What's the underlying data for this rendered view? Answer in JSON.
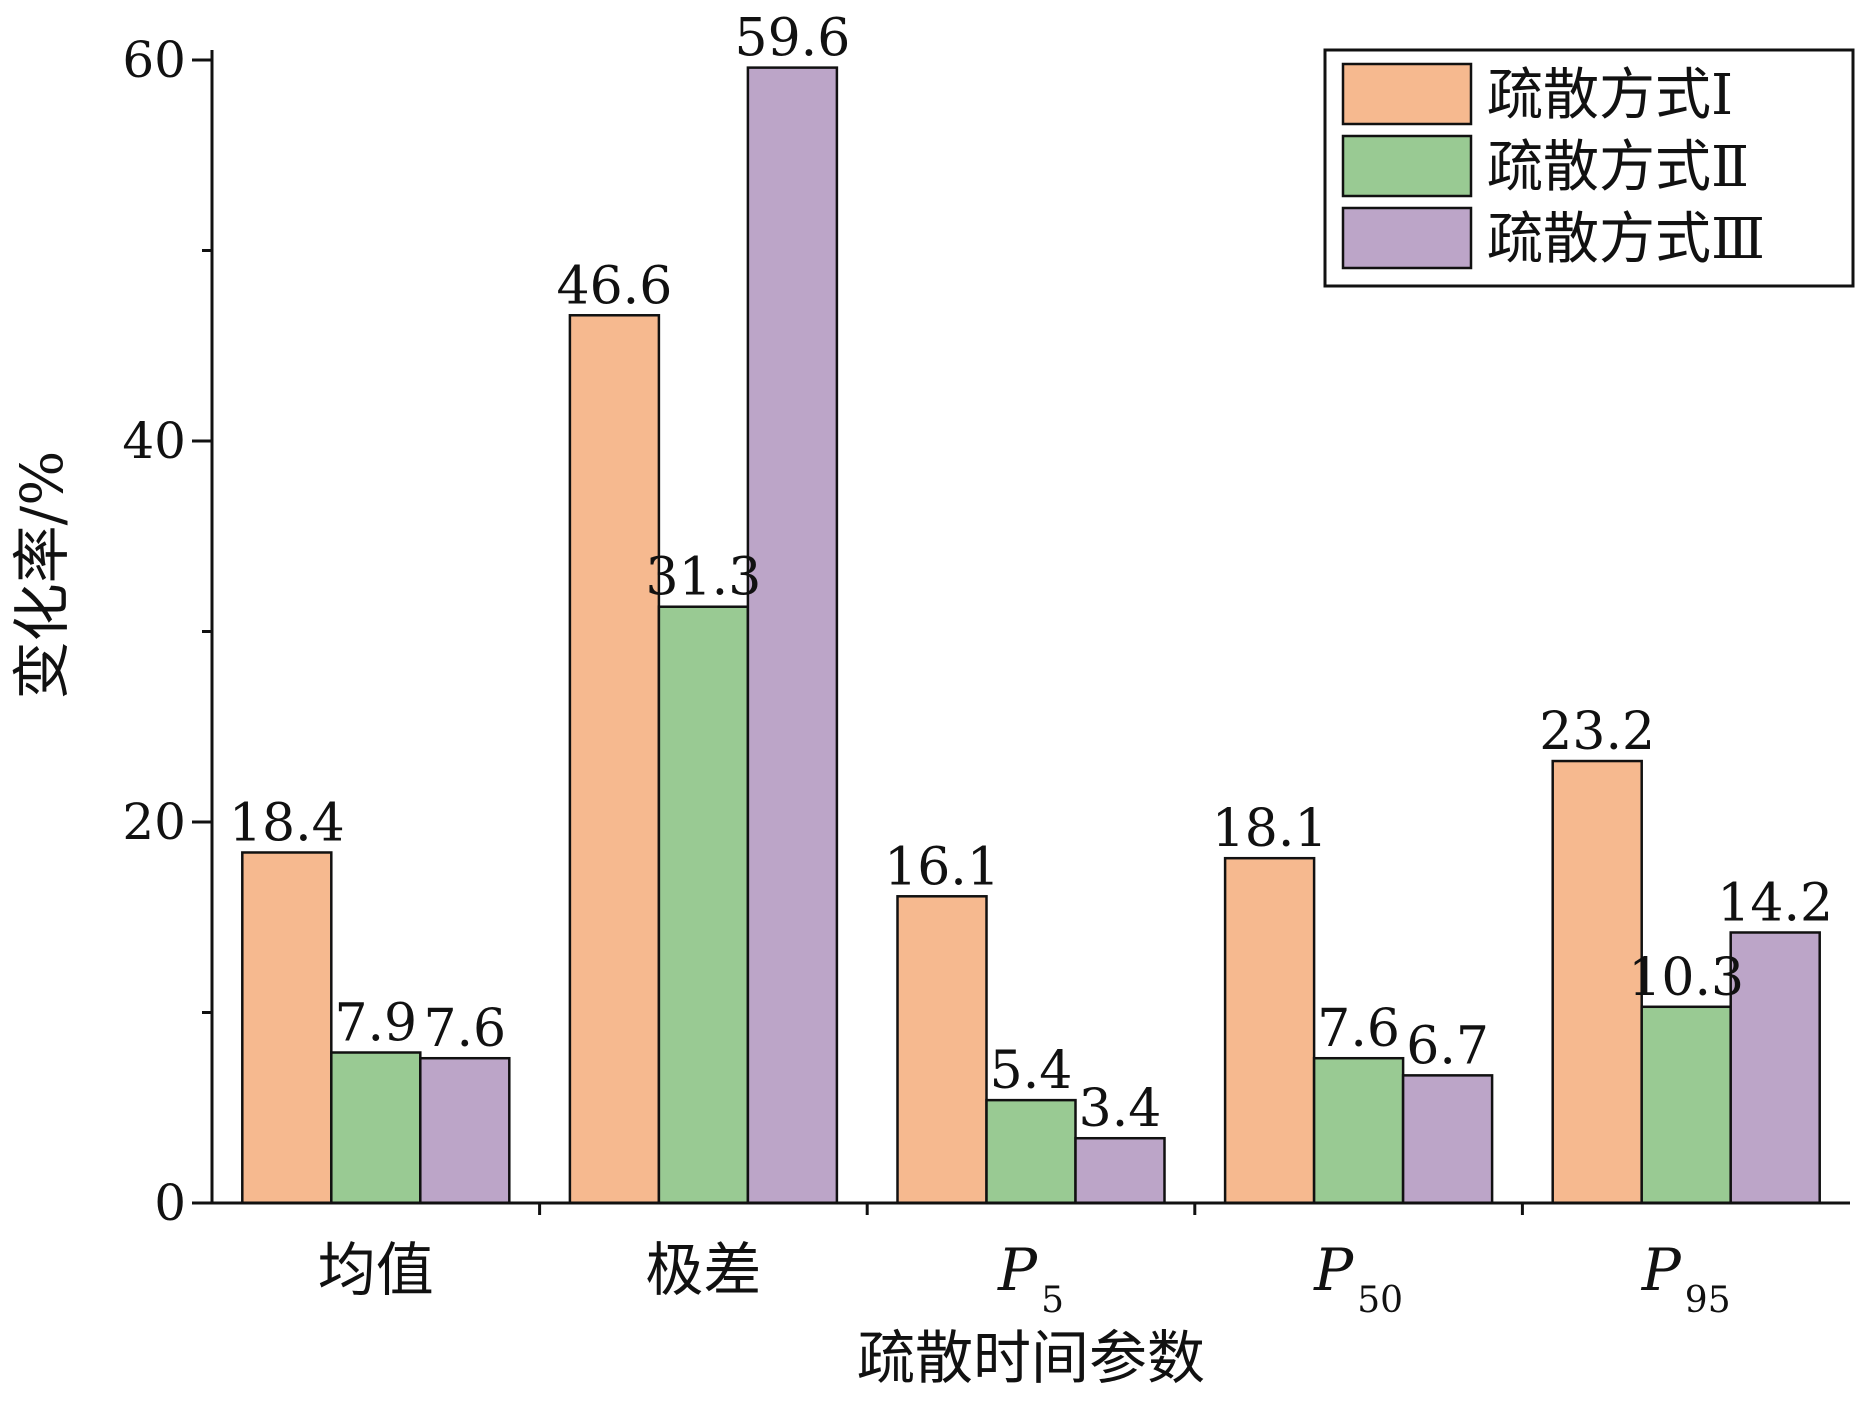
{
  "chart_data": {
    "type": "bar",
    "title": "",
    "xlabel": "疏散时间参数",
    "ylabel": "变化率/%",
    "ylim": [
      0,
      60
    ],
    "yticks": [
      0,
      20,
      40,
      60
    ],
    "grid": false,
    "legend_position": "top-right",
    "categories": [
      {
        "main": "均值",
        "sub": "",
        "italic": false
      },
      {
        "main": "极差",
        "sub": "",
        "italic": false
      },
      {
        "main": "P",
        "sub": "5",
        "italic": true
      },
      {
        "main": "P",
        "sub": "50",
        "italic": true
      },
      {
        "main": "P",
        "sub": "95",
        "italic": true
      }
    ],
    "series": [
      {
        "name": "疏散方式Ⅰ",
        "color": "#F6B98F",
        "values": [
          18.4,
          46.6,
          16.1,
          18.1,
          23.2
        ],
        "labels": [
          "18.4",
          "46.6",
          "16.1",
          "18.1",
          "23.2"
        ]
      },
      {
        "name": "疏散方式Ⅱ",
        "color": "#99CA93",
        "values": [
          7.9,
          31.3,
          5.4,
          7.6,
          10.3
        ],
        "labels": [
          "7.9",
          "31.3",
          "5.4",
          "7.6",
          "10.3"
        ]
      },
      {
        "name": "疏散方式Ⅲ",
        "color": "#BCA5C8",
        "values": [
          7.6,
          59.6,
          3.4,
          6.7,
          14.2
        ],
        "labels": [
          "7.6",
          "59.6",
          "3.4",
          "6.7",
          "14.2"
        ]
      }
    ]
  }
}
